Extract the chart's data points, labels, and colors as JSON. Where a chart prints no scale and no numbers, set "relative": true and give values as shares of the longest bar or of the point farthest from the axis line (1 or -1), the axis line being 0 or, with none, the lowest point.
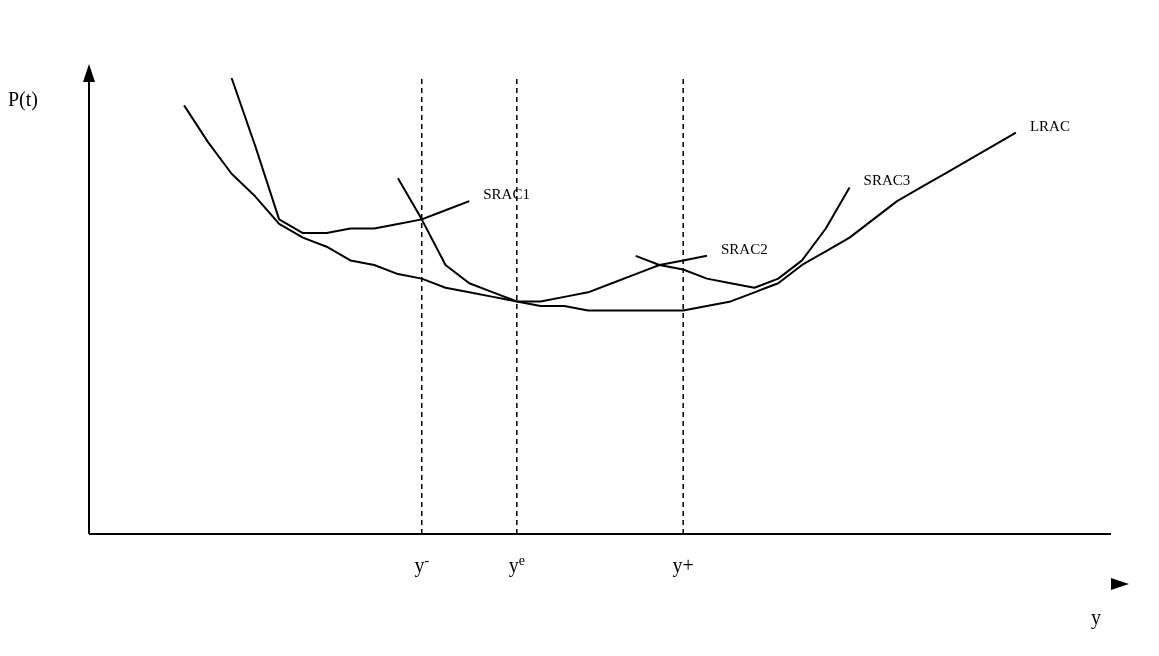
{
  "chart_data": {
    "type": "line",
    "relative": true,
    "xlabel": "y",
    "ylabel": "P(t)",
    "categories": [
      null,
      null,
      null,
      null,
      null,
      null,
      null,
      null,
      null,
      null,
      null,
      null,
      null,
      null,
      "y$^{-}$",
      null,
      null,
      null,
      "y$^{e}$",
      null,
      null,
      null,
      null,
      null,
      null,
      "y+",
      null,
      null,
      null,
      null,
      null,
      null,
      null,
      null,
      null,
      null,
      null,
      null,
      null,
      null,
      null,
      null,
      null,
      null
    ],
    "series": [
      {
        "name": "LRAC",
        "color": "#000000",
        "values": [
          null,
          null,
          null,
          null,
          0.94,
          0.86,
          0.79,
          0.74,
          0.68,
          0.65,
          0.63,
          0.6,
          0.59,
          0.57,
          0.56,
          0.54,
          0.53,
          0.52,
          0.51,
          0.5,
          0.5,
          0.49,
          0.49,
          0.49,
          0.49,
          0.49,
          0.5,
          0.51,
          0.53,
          0.55,
          0.59,
          0.62,
          0.65,
          0.69,
          0.73,
          0.76,
          0.79,
          0.82,
          0.85,
          0.88,
          null,
          null,
          null,
          null
        ]
      },
      {
        "name": "SRAC1",
        "color": "#000000",
        "values": [
          null,
          null,
          null,
          null,
          null,
          null,
          1.0,
          0.85,
          0.69,
          0.66,
          0.66,
          0.67,
          0.67,
          0.68,
          0.69,
          0.71,
          0.73,
          null,
          null,
          null,
          null,
          null,
          null,
          null,
          null,
          null,
          null,
          null,
          null,
          null,
          null,
          null,
          null,
          null,
          null,
          null,
          null,
          null,
          null,
          null,
          null,
          null,
          null,
          null
        ]
      },
      {
        "name": "SRAC2",
        "color": "#000000",
        "values": [
          null,
          null,
          null,
          null,
          null,
          null,
          null,
          null,
          null,
          null,
          null,
          null,
          null,
          0.78,
          0.69,
          0.59,
          0.55,
          0.53,
          0.51,
          0.51,
          0.52,
          0.53,
          0.55,
          0.57,
          0.59,
          0.6,
          0.61,
          null,
          null,
          null,
          null,
          null,
          null,
          null,
          null,
          null,
          null,
          null,
          null,
          null,
          null,
          null,
          null,
          null
        ]
      },
      {
        "name": "SRAC3",
        "color": "#000000",
        "values": [
          null,
          null,
          null,
          null,
          null,
          null,
          null,
          null,
          null,
          null,
          null,
          null,
          null,
          null,
          null,
          null,
          null,
          null,
          null,
          null,
          null,
          null,
          null,
          0.61,
          0.59,
          0.58,
          0.56,
          0.55,
          0.54,
          0.56,
          0.6,
          0.67,
          0.76,
          null,
          null,
          null,
          null,
          null,
          null,
          null,
          null,
          null,
          null,
          null
        ]
      }
    ],
    "ref_lines": [
      {
        "axis": "x",
        "value": "y$^{-}$",
        "line_style": "dashed"
      },
      {
        "axis": "x",
        "value": "y$^{e}$",
        "line_style": "dashed"
      },
      {
        "axis": "x",
        "value": "y+",
        "line_style": "dashed"
      }
    ]
  }
}
